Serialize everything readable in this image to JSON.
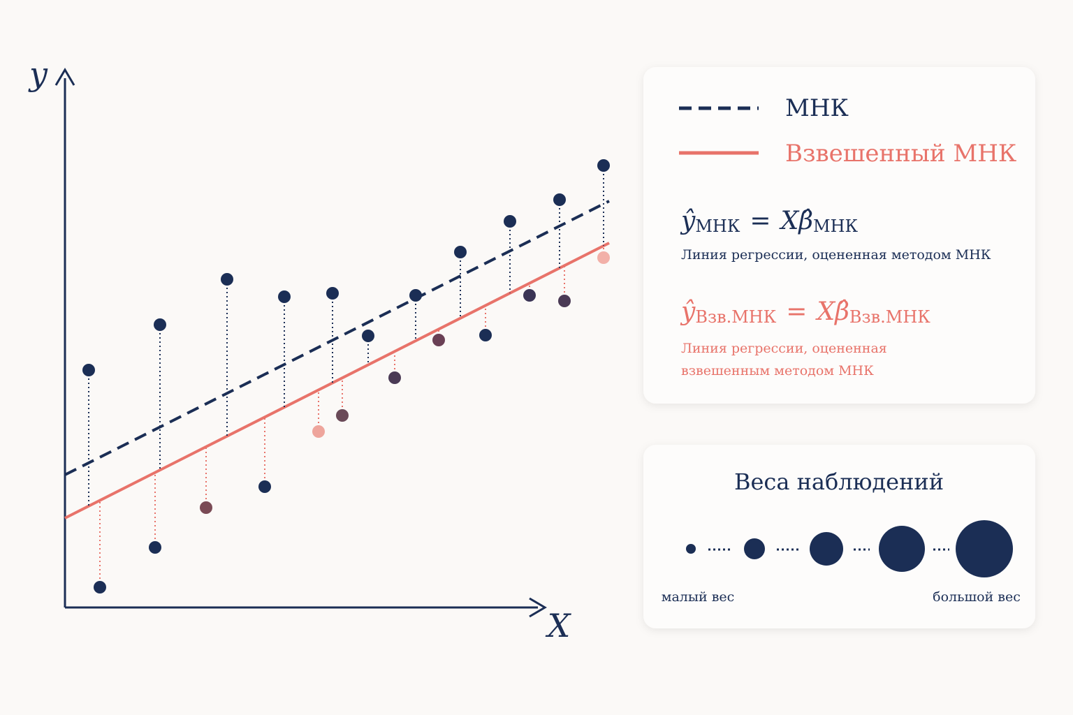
{
  "axes": {
    "y_label": "y",
    "x_label": "X"
  },
  "legend": {
    "items": [
      {
        "label": "МНК"
      },
      {
        "label": "Взвешенный МНК"
      }
    ]
  },
  "formulas": [
    {
      "lhs": "ŷ",
      "lhs_sub": "МНК",
      "eq": "=",
      "rhs": "X",
      "rhs_beta": "β̂",
      "rhs_sub": "МНК",
      "caption": [
        "Линия регрессии, оцененная методом МНК"
      ]
    },
    {
      "lhs": "ŷ",
      "lhs_sub": "Взв.МНК",
      "eq": "=",
      "rhs": "X",
      "rhs_beta": "β̂",
      "rhs_sub": "Взв.МНК",
      "caption": [
        "Линия регрессии, оцененная",
        "взвешенным методом МНК"
      ]
    }
  ],
  "weights": {
    "title": "Веса наблюдений",
    "low": "малый вес",
    "high": "большой вес"
  }
}
